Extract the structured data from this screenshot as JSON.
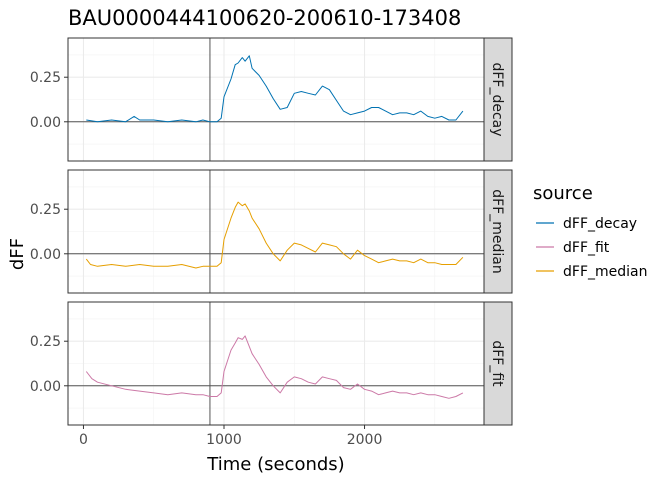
{
  "chart_data": {
    "type": "line",
    "title": "BAU0000444100620-200610-173408",
    "xlabel": "Time (seconds)",
    "ylabel": "dFF",
    "xlim": [
      -110,
      2850
    ],
    "ylim": [
      -0.22,
      0.47
    ],
    "x_ticks": [
      0,
      1000,
      2000
    ],
    "y_ticks": [
      0.0,
      0.25
    ],
    "y_tick_labels": [
      "0.00",
      "0.25"
    ],
    "event_line_x": 900,
    "reference_line_y": 0,
    "grid": true,
    "facet_by": "source",
    "legend": {
      "title": "source",
      "position": "right",
      "entries": [
        "dFF_decay",
        "dFF_fit",
        "dFF_median"
      ]
    },
    "panels": [
      {
        "strip": "dFF_decay",
        "series": "dFF_decay",
        "color": "#0072B2",
        "x": [
          20,
          100,
          200,
          300,
          360,
          400,
          500,
          600,
          700,
          800,
          850,
          900,
          950,
          980,
          1000,
          1050,
          1080,
          1100,
          1130,
          1150,
          1180,
          1200,
          1250,
          1300,
          1350,
          1400,
          1450,
          1500,
          1550,
          1600,
          1650,
          1700,
          1750,
          1800,
          1850,
          1900,
          1950,
          2000,
          2050,
          2100,
          2150,
          2200,
          2250,
          2300,
          2350,
          2400,
          2450,
          2500,
          2550,
          2600,
          2650,
          2700
        ],
        "y": [
          0.01,
          0.0,
          0.01,
          0.0,
          0.03,
          0.01,
          0.01,
          0.0,
          0.01,
          0.0,
          0.01,
          0.0,
          0.0,
          0.02,
          0.14,
          0.24,
          0.32,
          0.33,
          0.36,
          0.34,
          0.37,
          0.3,
          0.26,
          0.2,
          0.13,
          0.07,
          0.08,
          0.16,
          0.17,
          0.16,
          0.15,
          0.2,
          0.18,
          0.12,
          0.06,
          0.04,
          0.05,
          0.06,
          0.08,
          0.08,
          0.06,
          0.04,
          0.05,
          0.05,
          0.04,
          0.06,
          0.03,
          0.02,
          0.03,
          0.01,
          0.01,
          0.06
        ]
      },
      {
        "strip": "dFF_median",
        "series": "dFF_median",
        "color": "#E69F00",
        "x": [
          20,
          50,
          100,
          200,
          300,
          400,
          500,
          600,
          700,
          800,
          850,
          900,
          950,
          980,
          1000,
          1050,
          1080,
          1100,
          1130,
          1150,
          1180,
          1200,
          1250,
          1300,
          1350,
          1400,
          1450,
          1500,
          1550,
          1600,
          1650,
          1700,
          1750,
          1800,
          1850,
          1900,
          1950,
          2000,
          2050,
          2100,
          2150,
          2200,
          2250,
          2300,
          2350,
          2400,
          2450,
          2500,
          2550,
          2600,
          2650,
          2700
        ],
        "y": [
          -0.03,
          -0.06,
          -0.07,
          -0.06,
          -0.07,
          -0.06,
          -0.07,
          -0.07,
          -0.06,
          -0.08,
          -0.07,
          -0.07,
          -0.07,
          -0.05,
          0.08,
          0.2,
          0.26,
          0.29,
          0.27,
          0.28,
          0.24,
          0.2,
          0.14,
          0.06,
          0.0,
          -0.04,
          0.02,
          0.06,
          0.05,
          0.03,
          0.01,
          0.06,
          0.05,
          0.04,
          0.0,
          -0.03,
          0.02,
          -0.01,
          -0.03,
          -0.05,
          -0.04,
          -0.03,
          -0.04,
          -0.04,
          -0.05,
          -0.03,
          -0.05,
          -0.05,
          -0.06,
          -0.06,
          -0.06,
          -0.02
        ]
      },
      {
        "strip": "dFF_fit",
        "series": "dFF_fit",
        "color": "#CC79A7",
        "x": [
          20,
          60,
          100,
          200,
          300,
          400,
          500,
          600,
          700,
          800,
          850,
          900,
          950,
          980,
          1000,
          1050,
          1080,
          1100,
          1130,
          1150,
          1180,
          1200,
          1250,
          1300,
          1350,
          1400,
          1450,
          1500,
          1550,
          1600,
          1650,
          1700,
          1750,
          1800,
          1850,
          1900,
          1950,
          2000,
          2050,
          2100,
          2150,
          2200,
          2250,
          2300,
          2350,
          2400,
          2450,
          2500,
          2550,
          2600,
          2650,
          2700
        ],
        "y": [
          0.08,
          0.04,
          0.02,
          0.0,
          -0.02,
          -0.03,
          -0.04,
          -0.05,
          -0.04,
          -0.05,
          -0.05,
          -0.06,
          -0.06,
          -0.04,
          0.08,
          0.2,
          0.24,
          0.27,
          0.26,
          0.28,
          0.22,
          0.18,
          0.12,
          0.05,
          0.0,
          -0.04,
          0.02,
          0.05,
          0.04,
          0.02,
          0.01,
          0.05,
          0.04,
          0.03,
          -0.01,
          -0.02,
          0.01,
          -0.02,
          -0.03,
          -0.05,
          -0.04,
          -0.03,
          -0.04,
          -0.04,
          -0.05,
          -0.04,
          -0.05,
          -0.05,
          -0.06,
          -0.07,
          -0.06,
          -0.04
        ]
      }
    ]
  }
}
